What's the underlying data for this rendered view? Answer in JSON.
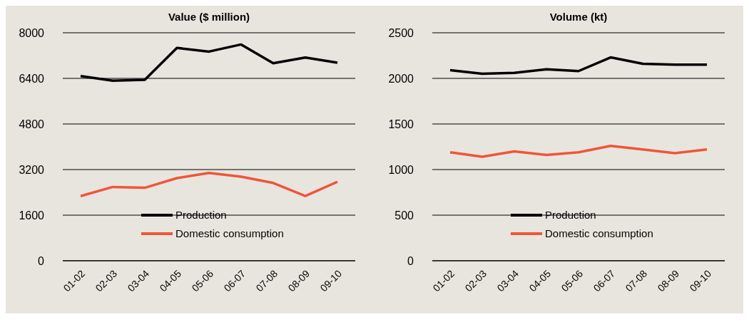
{
  "chart_data": [
    {
      "type": "line",
      "title": "Value ($ million)",
      "categories": [
        "01-02",
        "02-03",
        "03-04",
        "04-05",
        "05-06",
        "06-07",
        "07-08",
        "08-09",
        "09-10"
      ],
      "series": [
        {
          "name": "Production",
          "color": "#000000",
          "values": [
            6480,
            6320,
            6350,
            7470,
            7340,
            7590,
            6930,
            7130,
            6950
          ]
        },
        {
          "name": "Domestic consumption",
          "color": "#f0553a",
          "values": [
            2270,
            2590,
            2560,
            2900,
            3080,
            2950,
            2730,
            2270,
            2770
          ]
        }
      ],
      "ylim": [
        0,
        8000
      ],
      "yticks": [
        0,
        1600,
        3200,
        4800,
        6400,
        8000
      ],
      "grid": "y",
      "legend": "bottom",
      "marker": "none",
      "line_style": "solid"
    },
    {
      "type": "line",
      "title": "Volume (kt)",
      "categories": [
        "01-02",
        "02-03",
        "03-04",
        "04-05",
        "05-06",
        "06-07",
        "07-08",
        "08-09",
        "09-10"
      ],
      "series": [
        {
          "name": "Production",
          "color": "#000000",
          "values": [
            2090,
            2050,
            2060,
            2100,
            2080,
            2230,
            2160,
            2150,
            2150
          ]
        },
        {
          "name": "Domestic consumption",
          "color": "#f0553a",
          "values": [
            1190,
            1140,
            1200,
            1160,
            1190,
            1260,
            1220,
            1180,
            1220
          ]
        }
      ],
      "ylim": [
        0,
        2500
      ],
      "yticks": [
        0,
        500,
        1000,
        1500,
        2000,
        2500
      ],
      "grid": "y",
      "legend": "bottom",
      "marker": "none",
      "line_style": "solid"
    }
  ]
}
